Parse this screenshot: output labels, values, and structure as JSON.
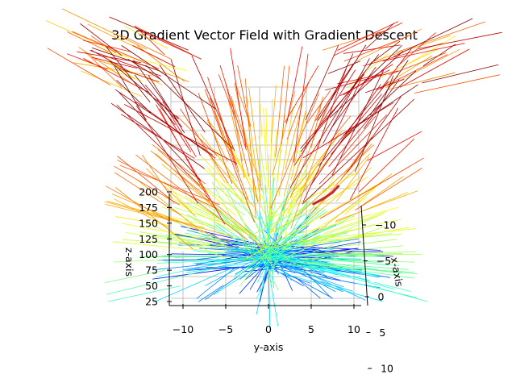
{
  "chart_data": {
    "type": "3d-vector-field",
    "title": "3D Gradient Vector Field with Gradient Descent",
    "xlabel": "x-axis",
    "ylabel": "y-axis",
    "zlabel": "z-axis",
    "xlim": [
      -10,
      10
    ],
    "ylim": [
      -10,
      10
    ],
    "zlim": [
      25,
      200
    ],
    "x_ticks": [
      "−10",
      "−5",
      "0",
      "5",
      "10"
    ],
    "y_ticks": [
      "−10",
      "−5",
      "0",
      "5",
      "10"
    ],
    "z_ticks": [
      "25",
      "50",
      "75",
      "100",
      "125",
      "150",
      "175",
      "200"
    ],
    "colormap": "jet",
    "grid": true,
    "descent_path_color": "#c8282d",
    "descent_path": [
      {
        "x": -2.6,
        "y": 5.2,
        "z": 168
      },
      {
        "x": -2.2,
        "y": 5.7,
        "z": 176
      },
      {
        "x": -1.8,
        "y": 6.2,
        "z": 186
      },
      {
        "x": -1.5,
        "y": 6.5,
        "z": 196
      }
    ]
  }
}
